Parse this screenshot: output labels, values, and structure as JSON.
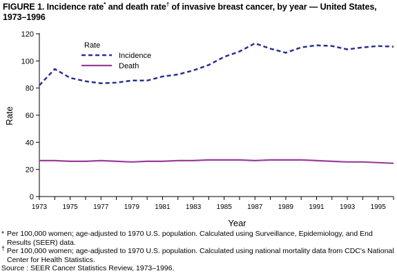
{
  "figure": {
    "title_part1": "FIGURE 1. Incidence rate",
    "title_mark1": "*",
    "title_part2": " and death rate",
    "title_mark2": "†",
    "title_part3": " of invasive breast cancer, by year — United States, 1973–1996"
  },
  "chart_data": {
    "type": "line",
    "x": [
      1973,
      1974,
      1975,
      1976,
      1977,
      1978,
      1979,
      1980,
      1981,
      1982,
      1983,
      1984,
      1985,
      1986,
      1987,
      1988,
      1989,
      1990,
      1991,
      1992,
      1993,
      1994,
      1995,
      1996
    ],
    "series": [
      {
        "name": "Incidence",
        "style": "dashed",
        "color": "#2b2f8f",
        "values": [
          82,
          94,
          87.5,
          85,
          83.5,
          84,
          85.5,
          85.5,
          88.5,
          90,
          93,
          97,
          103,
          107,
          113,
          109,
          106,
          110,
          111.5,
          111,
          108.5,
          110,
          111,
          110.5
        ]
      },
      {
        "name": "Death",
        "style": "solid",
        "color": "#9b3c9b",
        "values": [
          26.5,
          26.5,
          26,
          26,
          26.5,
          26,
          25.5,
          26,
          26,
          26.5,
          26.5,
          27,
          27,
          27,
          26.5,
          27,
          27,
          27,
          26.5,
          26,
          25.5,
          25.5,
          25,
          24.5
        ]
      }
    ],
    "xlabel": "Year",
    "ylabel": "Rate",
    "xlim": [
      1973,
      1996
    ],
    "ylim": [
      0,
      120
    ],
    "y_ticks": [
      0,
      20,
      40,
      60,
      80,
      100,
      120
    ],
    "x_tick_labels": [
      "1973",
      "1975",
      "1977",
      "1979",
      "1981",
      "1983",
      "1985",
      "1987",
      "1989",
      "1991",
      "1993",
      "1995"
    ],
    "legend_title": "Rate",
    "legend_position": "top-left",
    "grid": false
  },
  "footnotes": {
    "note1_mark": "*",
    "note1_text": "Per 100,000 women; age-adjusted to 1970 U.S. population. Calculated using Surveillance, Epidemiology, and End Results (SEER) data.",
    "note2_mark": "†",
    "note2_text": "Per 100,000 women; age-adjusted to 1970 U.S. population. Calculated using national mortality data from CDC's National Center for Health Statistics.",
    "source": "Source : SEER Cancer Statistics Review, 1973–1996."
  }
}
